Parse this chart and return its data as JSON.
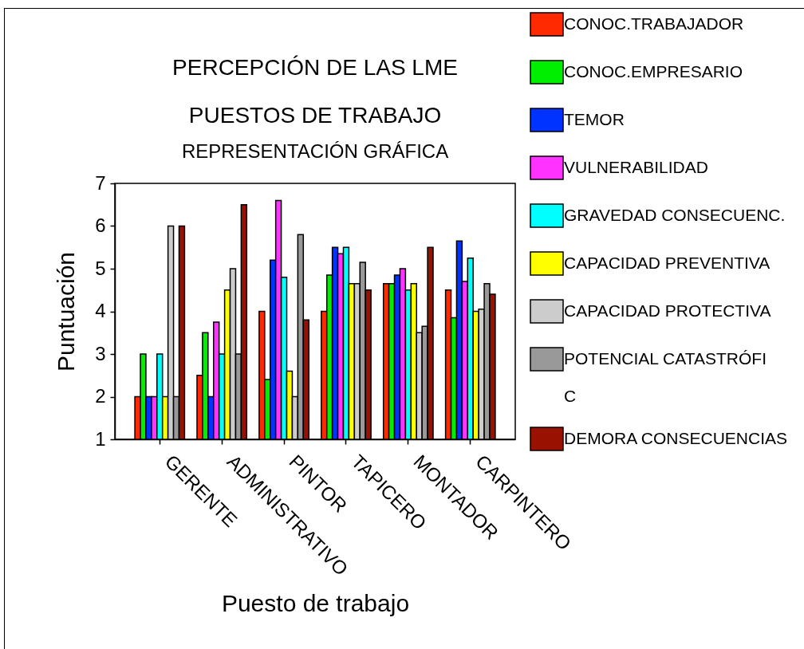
{
  "chart_data": {
    "type": "bar",
    "title": "PERCEPCIÓN DE LAS LME",
    "subtitle": "PUESTOS DE TRABAJO",
    "annotations": [
      "REPRESENTACIÓN GRÁFICA"
    ],
    "xlabel": "Puesto de trabajo",
    "ylabel": "Puntuación",
    "categories": [
      "GERENTE",
      "ADMINISTRATIVO",
      "PINTOR",
      "TAPICERO",
      "MONTADOR",
      "CARPINTERO"
    ],
    "series": [
      {
        "name": "CONOC.TRABAJADOR",
        "color": "#ff2a00",
        "values": [
          2,
          2.5,
          4,
          4,
          4.65,
          4.5
        ]
      },
      {
        "name": "CONOC.EMPRESARIO",
        "color": "#00ee00",
        "values": [
          3,
          3.5,
          2.4,
          4.85,
          4.65,
          3.85
        ]
      },
      {
        "name": "TEMOR",
        "color": "#0033ff",
        "values": [
          2,
          2,
          5.2,
          5.5,
          4.85,
          5.65
        ]
      },
      {
        "name": "VULNERABILIDAD",
        "color": "#ff33ff",
        "values": [
          2,
          3.75,
          6.6,
          5.35,
          5,
          4.7
        ]
      },
      {
        "name": "GRAVEDAD CONSECUENC.",
        "color": "#00ffff",
        "values": [
          3,
          3,
          4.8,
          5.5,
          4.5,
          5.25
        ]
      },
      {
        "name": "CAPACIDAD PREVENTIVA",
        "color": "#ffff00",
        "values": [
          2,
          4.5,
          2.6,
          4.65,
          4.65,
          4
        ]
      },
      {
        "name": "CAPACIDAD PROTECTIVA",
        "color": "#cccccc",
        "values": [
          6,
          5,
          2,
          4.65,
          3.5,
          4.05
        ]
      },
      {
        "name": "POTENCIAL CATASTRÓFIC",
        "color": "#999999",
        "values": [
          2,
          3,
          5.8,
          5.15,
          3.65,
          4.65
        ]
      },
      {
        "name": "DEMORA CONSECUENCIAS",
        "color": "#991100",
        "values": [
          6,
          6.5,
          3.8,
          4.5,
          5.5,
          4.4
        ]
      }
    ],
    "ylim": [
      1,
      7
    ],
    "yticks": [
      1,
      2,
      3,
      4,
      5,
      6,
      7
    ],
    "grid": false,
    "legend": "right"
  }
}
